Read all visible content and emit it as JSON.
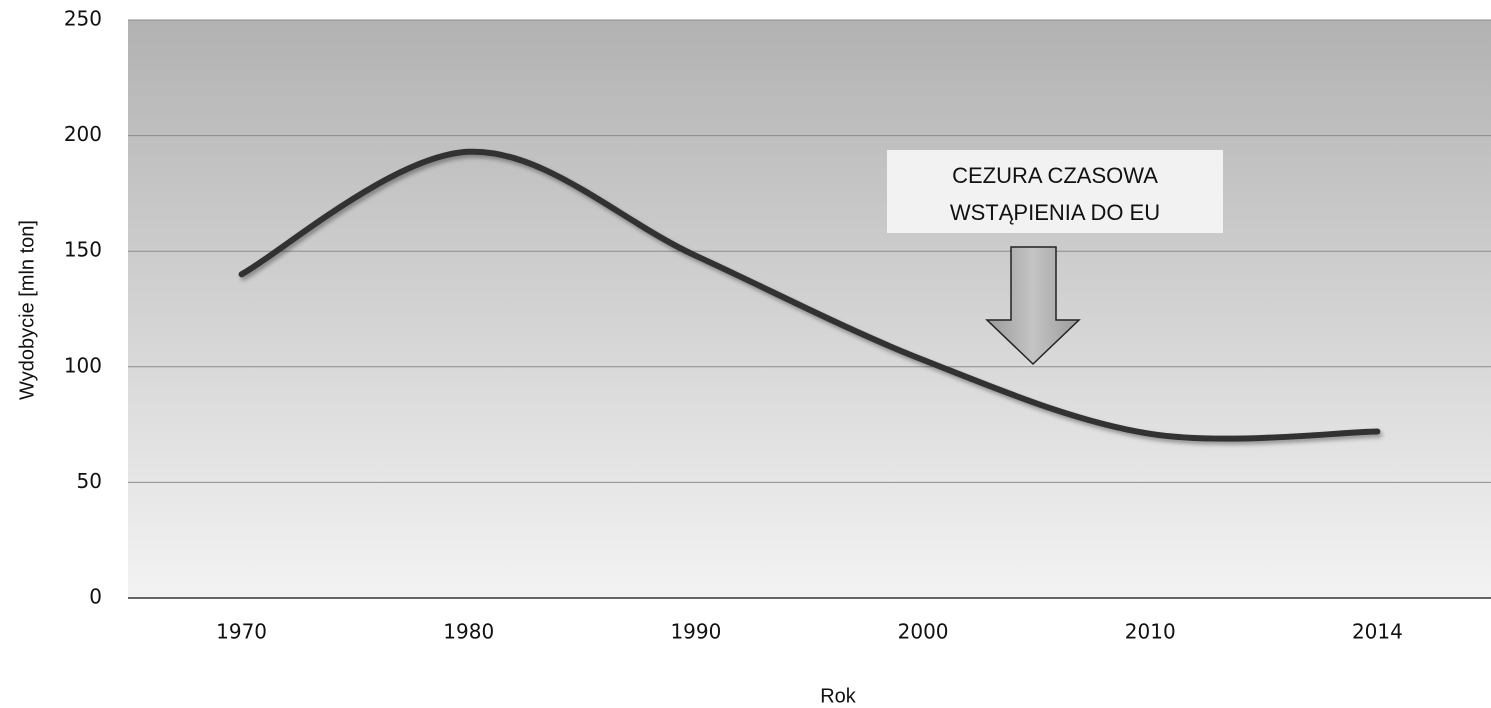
{
  "chart_data": {
    "type": "line",
    "x_label": "Rok",
    "y_label": "Wydobycie [mln ton]",
    "categories": [
      "1970",
      "1980",
      "1990",
      "2000",
      "2010",
      "2014"
    ],
    "series": [
      {
        "name": "Wydobycie",
        "color": "#333333",
        "values": [
          140,
          193,
          148,
          103,
          71,
          72
        ]
      }
    ],
    "ylim": [
      0,
      250
    ],
    "yticks": [
      0,
      50,
      100,
      150,
      200,
      250
    ],
    "grid": true,
    "annotation": [
      "CEZURA CZASOWA",
      "WSTĄPIENIA DO EU"
    ]
  }
}
